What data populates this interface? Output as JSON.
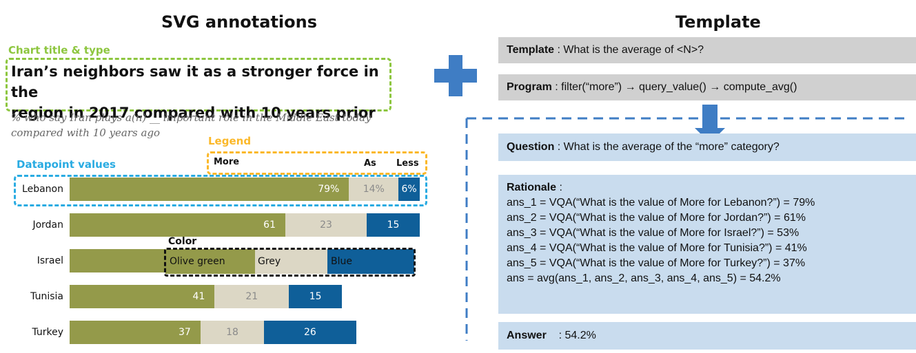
{
  "left_heading": "SVG annotations",
  "right_heading": "Template",
  "annotations": {
    "chart_title_type": "Chart title & type",
    "legend": "Legend",
    "datapoint_values": "Datapoint values",
    "color": "Color"
  },
  "chart": {
    "title_line1": "Iran’s neighbors saw it as a stronger force in the",
    "title_line2": "region in 2017 compared with 10 years prior",
    "subtitle_line1": "% who say Iran plays a(n) __ important role in the Middle East today",
    "subtitle_line2": "compared with 10 years ago",
    "legend": [
      "More",
      "As",
      "Less"
    ],
    "colors": {
      "more": "#949a4a",
      "as": "#dcd7c5",
      "less": "#0f5f99"
    },
    "color_labels": [
      "Olive green",
      "Grey",
      "Blue"
    ]
  },
  "chart_data": {
    "type": "bar",
    "stacked": true,
    "orientation": "horizontal",
    "categories": [
      "Lebanon",
      "Jordan",
      "Israel",
      "Tunisia",
      "Turkey"
    ],
    "series": [
      {
        "name": "More",
        "values": [
          79,
          61,
          null,
          41,
          37
        ],
        "labels": [
          "79%",
          "61",
          "",
          "41",
          "37"
        ]
      },
      {
        "name": "As",
        "values": [
          14,
          23,
          null,
          21,
          18
        ],
        "labels": [
          "14%",
          "23",
          "",
          "21",
          "18"
        ]
      },
      {
        "name": "Less",
        "values": [
          6,
          15,
          null,
          15,
          26
        ],
        "labels": [
          "6%",
          "15",
          "",
          "15",
          "26"
        ]
      }
    ]
  },
  "template": {
    "template_label": "Template",
    "template_text": " : What is the average of <N>?",
    "program_label": "Program",
    "program_text": " : filter(“more”) → query_value() → compute_avg()",
    "question_label": "Question",
    "question_text": " : What is the average of the “more” category?",
    "rationale_label": "Rationale",
    "rationale_suffix": " :",
    "rationale_lines": [
      "ans_1 = VQA(“What is the value of More for Lebanon?”) = 79%",
      "ans_2 = VQA(“What is the value of More for Jordan?”) = 61%",
      "ans_3 = VQA(“What is the value of More for Israel?”)  = 53%",
      "ans_4 = VQA(“What is the value of More for Tunisia?”) = 41%",
      "ans_5 = VQA(“What is the value of More for Turkey?”) = 37%",
      "ans = avg(ans_1, ans_2, ans_3, ans_4, ans_5) = 54.2%"
    ],
    "answer_label": "Answer",
    "answer_text": "    : 54.2%"
  }
}
